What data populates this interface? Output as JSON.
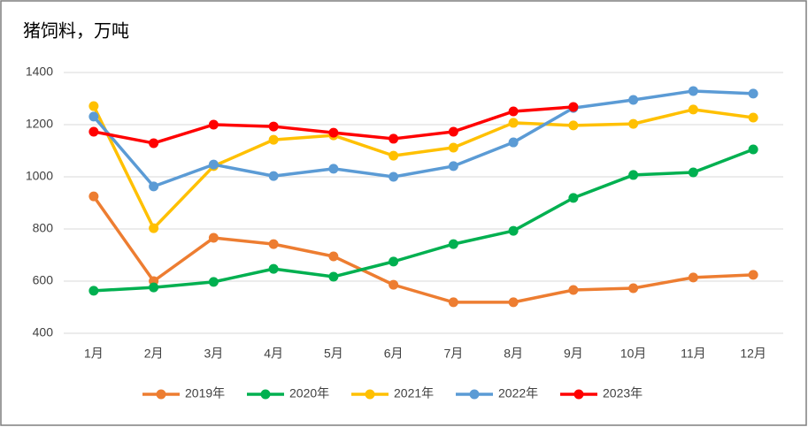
{
  "chart_data": {
    "type": "line",
    "title": "猪饲料，万吨",
    "categories": [
      "1月",
      "2月",
      "3月",
      "4月",
      "5月",
      "6月",
      "7月",
      "8月",
      "9月",
      "10月",
      "11月",
      "12月"
    ],
    "series": [
      {
        "name": "2019年",
        "color": "#ed7d31",
        "values": [
          925,
          600,
          766,
          742,
          695,
          586,
          519,
          519,
          566,
          573,
          614,
          624
        ]
      },
      {
        "name": "2020年",
        "color": "#00b050",
        "values": [
          563,
          576,
          597,
          647,
          617,
          675,
          742,
          793,
          919,
          1007,
          1017,
          1105
        ]
      },
      {
        "name": "2021年",
        "color": "#ffc000",
        "values": [
          1271,
          803,
          1041,
          1142,
          1159,
          1081,
          1112,
          1207,
          1197,
          1203,
          1258,
          1227
        ]
      },
      {
        "name": "2022年",
        "color": "#5b9bd5",
        "values": [
          1231,
          963,
          1047,
          1003,
          1031,
          1000,
          1041,
          1132,
          1264,
          1295,
          1329,
          1319
        ]
      },
      {
        "name": "2023年",
        "color": "#ff0000",
        "values": [
          1173,
          1129,
          1200,
          1193,
          1169,
          1146,
          1173,
          1251,
          1268,
          null,
          null,
          null
        ]
      }
    ],
    "ylim": [
      400,
      1400
    ],
    "yticks": [
      400,
      600,
      800,
      1000,
      1200,
      1400
    ],
    "grid": true,
    "legend": "bottom"
  }
}
